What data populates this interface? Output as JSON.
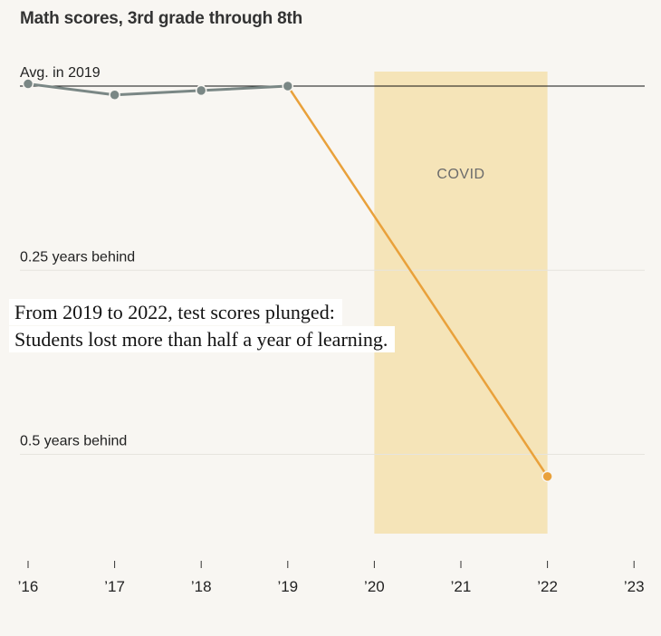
{
  "chart_data": {
    "type": "line",
    "title": "Math scores, 3rd grade through 8th",
    "x": [
      2016,
      2017,
      2018,
      2019,
      2022
    ],
    "values": [
      0.003,
      -0.012,
      -0.006,
      0.0,
      -0.53
    ],
    "x_ticks": [
      {
        "value": 2016,
        "label": "’16"
      },
      {
        "value": 2017,
        "label": "’17"
      },
      {
        "value": 2018,
        "label": "’18"
      },
      {
        "value": 2019,
        "label": "’19"
      },
      {
        "value": 2020,
        "label": "’20"
      },
      {
        "value": 2021,
        "label": "’21"
      },
      {
        "value": 2022,
        "label": "’22"
      },
      {
        "value": 2023,
        "label": "’23"
      }
    ],
    "y_gridlines": [
      {
        "value": 0,
        "label": "Avg. in 2019"
      },
      {
        "value": -0.25,
        "label": "0.25 years behind"
      },
      {
        "value": -0.5,
        "label": "0.5 years behind"
      }
    ],
    "xlim": [
      2016,
      2023
    ],
    "shaded_region": {
      "from": 2020,
      "to": 2022,
      "label": "COVID",
      "color": "#f5e4b8"
    },
    "colors": {
      "pre": "#7a8785",
      "post": "#e9a13b",
      "baseline": "#111111",
      "grid": "#e6e4de"
    },
    "annotation": "From 2019 to 2022, test scores plunged: Students lost more than half a year of learning."
  }
}
